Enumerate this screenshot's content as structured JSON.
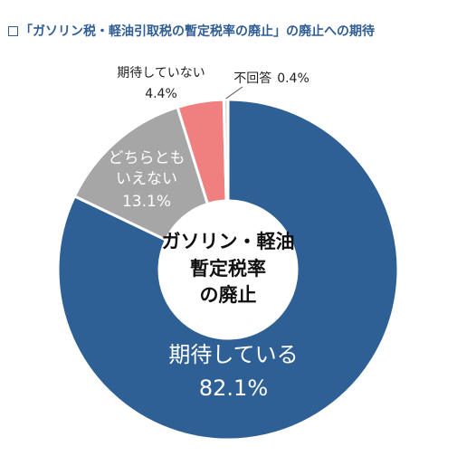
{
  "header": {
    "title": "「ガソリン税・軽油引取税の暫定税率の廃止」の廃止への期待"
  },
  "center_label": [
    "ガソリン・軽油",
    "暫定税率",
    "の廃止"
  ],
  "chart_data": {
    "type": "pie",
    "variant": "donut",
    "title": "「ガソリン税・軽油引取税の暫定税率の廃止」の廃止への期待",
    "slices": [
      {
        "label": "期待している",
        "label_lines": [
          "期待している"
        ],
        "value": 82.1,
        "value_text": "82.1%",
        "color": "#2e6096"
      },
      {
        "label": "どちらともいえない",
        "label_lines": [
          "どちらとも",
          "いえない"
        ],
        "value": 13.1,
        "value_text": "13.1%",
        "color": "#a6a6a6"
      },
      {
        "label": "期待していない",
        "label_lines": [
          "期待していない"
        ],
        "value": 4.4,
        "value_text": "4.4%",
        "color": "#f08080"
      },
      {
        "label": "不回答",
        "label_lines": [
          "不回答"
        ],
        "value": 0.4,
        "value_text": "0.4%",
        "color": "#d9d9d9"
      }
    ]
  },
  "colors": {
    "title": "#2f5d94",
    "center_text": "#111111",
    "outside_label": "#222222",
    "inside_label": "#ffffff"
  }
}
